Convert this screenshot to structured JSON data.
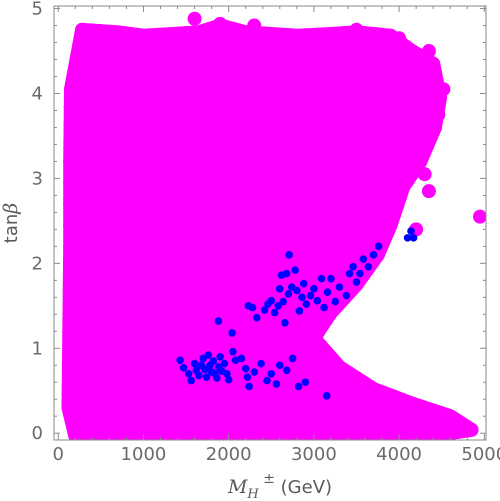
{
  "chart_data": {
    "type": "scatter",
    "title": "",
    "xlabel": {
      "symbol": "M",
      "subscript": "H",
      "superscript": "±",
      "unit": "(GeV)"
    },
    "ylabel": {
      "text": "tan",
      "symbol": "β"
    },
    "xlim": [
      -50,
      5020
    ],
    "ylim": [
      -0.08,
      5.03
    ],
    "xticks": [
      0,
      1000,
      2000,
      3000,
      4000,
      5000
    ],
    "yticks": [
      0,
      1,
      2,
      3,
      4,
      5
    ],
    "grid": false,
    "legend": "none",
    "series": [
      {
        "color": "#ff00ff",
        "region": {
          "description_points": [
            [
              150,
              4.05
            ],
            [
              280,
              4.75
            ],
            [
              700,
              4.72
            ],
            [
              1000,
              4.68
            ],
            [
              1340,
              4.7
            ],
            [
              1650,
              4.72
            ],
            [
              1900,
              4.8
            ],
            [
              2200,
              4.72
            ],
            [
              2500,
              4.7
            ],
            [
              2800,
              4.68
            ],
            [
              3200,
              4.7
            ],
            [
              3500,
              4.72
            ],
            [
              3900,
              4.68
            ],
            [
              4150,
              4.5
            ],
            [
              4400,
              4.35
            ],
            [
              4480,
              3.95
            ],
            [
              4420,
              3.6
            ],
            [
              4250,
              3.2
            ],
            [
              4050,
              2.9
            ],
            [
              3900,
              2.45
            ],
            [
              3750,
              2.1
            ],
            [
              3500,
              1.75
            ],
            [
              3200,
              1.42
            ],
            [
              3000,
              1.12
            ],
            [
              3300,
              0.78
            ],
            [
              3700,
              0.52
            ],
            [
              4150,
              0.35
            ],
            [
              4600,
              0.2
            ],
            [
              4850,
              0.04
            ],
            [
              4400,
              -0.03
            ],
            [
              3500,
              -0.03
            ],
            [
              2500,
              -0.03
            ],
            [
              1500,
              -0.03
            ],
            [
              700,
              -0.03
            ],
            [
              200,
              -0.03
            ],
            [
              120,
              0.3
            ],
            [
              130,
              1.2
            ],
            [
              140,
              2.2
            ],
            [
              140,
              3.2
            ]
          ],
          "scattered_points": [
            [
              1600,
              4.88
            ],
            [
              1900,
              4.82
            ],
            [
              2300,
              4.8
            ],
            [
              3500,
              4.75
            ],
            [
              4000,
              4.65
            ],
            [
              4150,
              4.2
            ],
            [
              4350,
              4.5
            ],
            [
              4520,
              4.05
            ],
            [
              4460,
              3.75
            ],
            [
              4300,
              3.05
            ],
            [
              4350,
              2.85
            ],
            [
              4950,
              2.55
            ],
            [
              4200,
              2.4
            ],
            [
              4700,
              0.05
            ],
            [
              4800,
              0.03
            ]
          ]
        }
      },
      {
        "color": "#0000ff",
        "points": [
          [
            1430,
            0.86
          ],
          [
            1470,
            0.77
          ],
          [
            1530,
            0.7
          ],
          [
            1560,
            0.62
          ],
          [
            1600,
            0.82
          ],
          [
            1620,
            0.74
          ],
          [
            1650,
            0.68
          ],
          [
            1680,
            0.8
          ],
          [
            1700,
            0.88
          ],
          [
            1720,
            0.75
          ],
          [
            1740,
            0.66
          ],
          [
            1760,
            0.92
          ],
          [
            1780,
            0.8
          ],
          [
            1800,
            0.72
          ],
          [
            1820,
            0.85
          ],
          [
            1840,
            0.7
          ],
          [
            1860,
            0.65
          ],
          [
            1880,
            0.78
          ],
          [
            1900,
            0.9
          ],
          [
            1920,
            0.73
          ],
          [
            1950,
            0.82
          ],
          [
            1980,
            0.7
          ],
          [
            2000,
            0.63
          ],
          [
            2050,
            0.96
          ],
          [
            2080,
            0.86
          ],
          [
            2150,
            0.88
          ],
          [
            2200,
            0.76
          ],
          [
            2220,
            0.66
          ],
          [
            2240,
            0.55
          ],
          [
            2300,
            0.72
          ],
          [
            2380,
            0.82
          ],
          [
            2450,
            0.62
          ],
          [
            2500,
            0.7
          ],
          [
            2560,
            0.58
          ],
          [
            2600,
            0.8
          ],
          [
            2680,
            0.74
          ],
          [
            2750,
            0.88
          ],
          [
            2820,
            0.55
          ],
          [
            2900,
            0.6
          ],
          [
            3150,
            0.44
          ],
          [
            1880,
            1.32
          ],
          [
            2040,
            1.18
          ],
          [
            2230,
            1.5
          ],
          [
            2280,
            1.48
          ],
          [
            2330,
            1.36
          ],
          [
            2420,
            1.45
          ],
          [
            2460,
            1.52
          ],
          [
            2500,
            1.56
          ],
          [
            2540,
            1.42
          ],
          [
            2580,
            1.5
          ],
          [
            2600,
            1.7
          ],
          [
            2620,
            1.86
          ],
          [
            2640,
            1.55
          ],
          [
            2660,
            1.3
          ],
          [
            2680,
            1.88
          ],
          [
            2700,
            1.64
          ],
          [
            2710,
            2.1
          ],
          [
            2740,
            1.72
          ],
          [
            2780,
            1.92
          ],
          [
            2800,
            1.68
          ],
          [
            2830,
            1.44
          ],
          [
            2860,
            1.6
          ],
          [
            2880,
            1.76
          ],
          [
            2910,
            1.52
          ],
          [
            2960,
            1.62
          ],
          [
            3000,
            1.7
          ],
          [
            3040,
            1.56
          ],
          [
            3090,
            1.82
          ],
          [
            3120,
            1.48
          ],
          [
            3160,
            1.66
          ],
          [
            3200,
            1.82
          ],
          [
            3250,
            1.55
          ],
          [
            3300,
            1.72
          ],
          [
            3380,
            1.62
          ],
          [
            3420,
            1.88
          ],
          [
            3460,
            1.96
          ],
          [
            3500,
            1.78
          ],
          [
            3540,
            1.88
          ],
          [
            3580,
            2.05
          ],
          [
            3640,
            1.96
          ],
          [
            3700,
            2.1
          ],
          [
            3760,
            2.2
          ],
          [
            4100,
            2.3
          ],
          [
            4140,
            2.38
          ],
          [
            4170,
            2.3
          ]
        ]
      }
    ]
  }
}
